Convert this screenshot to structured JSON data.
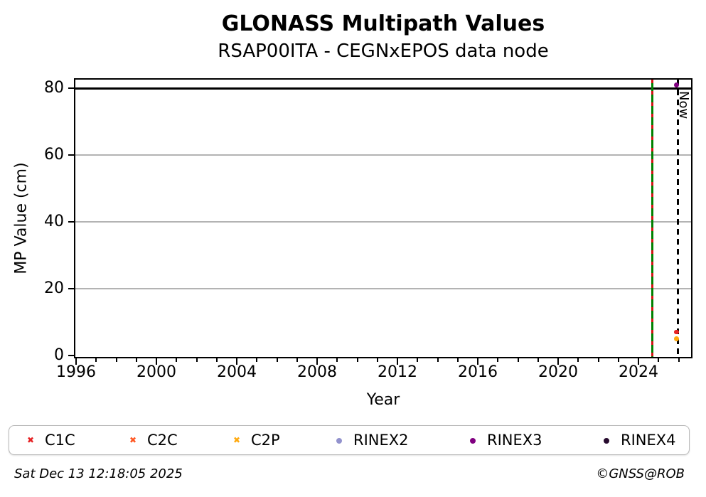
{
  "header": {
    "title": "GLONASS Multipath Values",
    "subtitle": "RSAP00ITA - CEGNxEPOS data node"
  },
  "chart_data": {
    "type": "scatter",
    "title": "GLONASS Multipath Values",
    "subtitle": "RSAP00ITA - CEGNxEPOS data node",
    "xlabel": "Year",
    "ylabel": "MP Value (cm)",
    "xlim": [
      1995.9,
      2026.9
    ],
    "ylim": [
      0,
      82.8
    ],
    "x_ticks_major": [
      1996,
      2000,
      2004,
      2008,
      2012,
      2016,
      2020,
      2024
    ],
    "x_minor_tick_years": {
      "start": 1996,
      "end": 2026,
      "step": 1
    },
    "y_ticks": [
      0,
      20,
      40,
      60,
      80
    ],
    "grid": "horizontal-gray-at-20-40-60",
    "legend_position": "below-plot",
    "series": [
      {
        "name": "C1C",
        "marker": "x",
        "color": "#e62325",
        "points": [
          {
            "x": 2025.9,
            "y": 7
          }
        ]
      },
      {
        "name": "C2C",
        "marker": "x",
        "color": "#ff5722",
        "points": [
          {
            "x": 2025.9,
            "y": 7
          }
        ]
      },
      {
        "name": "C2P",
        "marker": "x",
        "color": "#ffa90e",
        "points": [
          {
            "x": 2025.9,
            "y": 5
          }
        ]
      },
      {
        "name": "RINEX2",
        "marker": "circle",
        "color": "#9292cd",
        "points": []
      },
      {
        "name": "RINEX3",
        "marker": "circle",
        "color": "#800080",
        "points": [
          {
            "x": 2025.9,
            "y": 81
          }
        ]
      },
      {
        "name": "RINEX4",
        "marker": "circle",
        "color": "#270a2e",
        "points": []
      }
    ],
    "annotations": {
      "hline": {
        "y": 80,
        "color": "#000000",
        "style": "solid"
      },
      "vlines": [
        {
          "x": 2024.68,
          "color": "#008000",
          "style": "solid",
          "overlay_color": "#d41414",
          "overlay_style": "dashed",
          "label": ""
        },
        {
          "x": 2025.95,
          "color": "#000000",
          "style": "dashed",
          "label": "Now"
        }
      ]
    }
  },
  "now_label": "Now",
  "footer": {
    "timestamp": "Sat Dec 13 12:18:05 2025",
    "copyright": "©GNSS@ROB"
  }
}
